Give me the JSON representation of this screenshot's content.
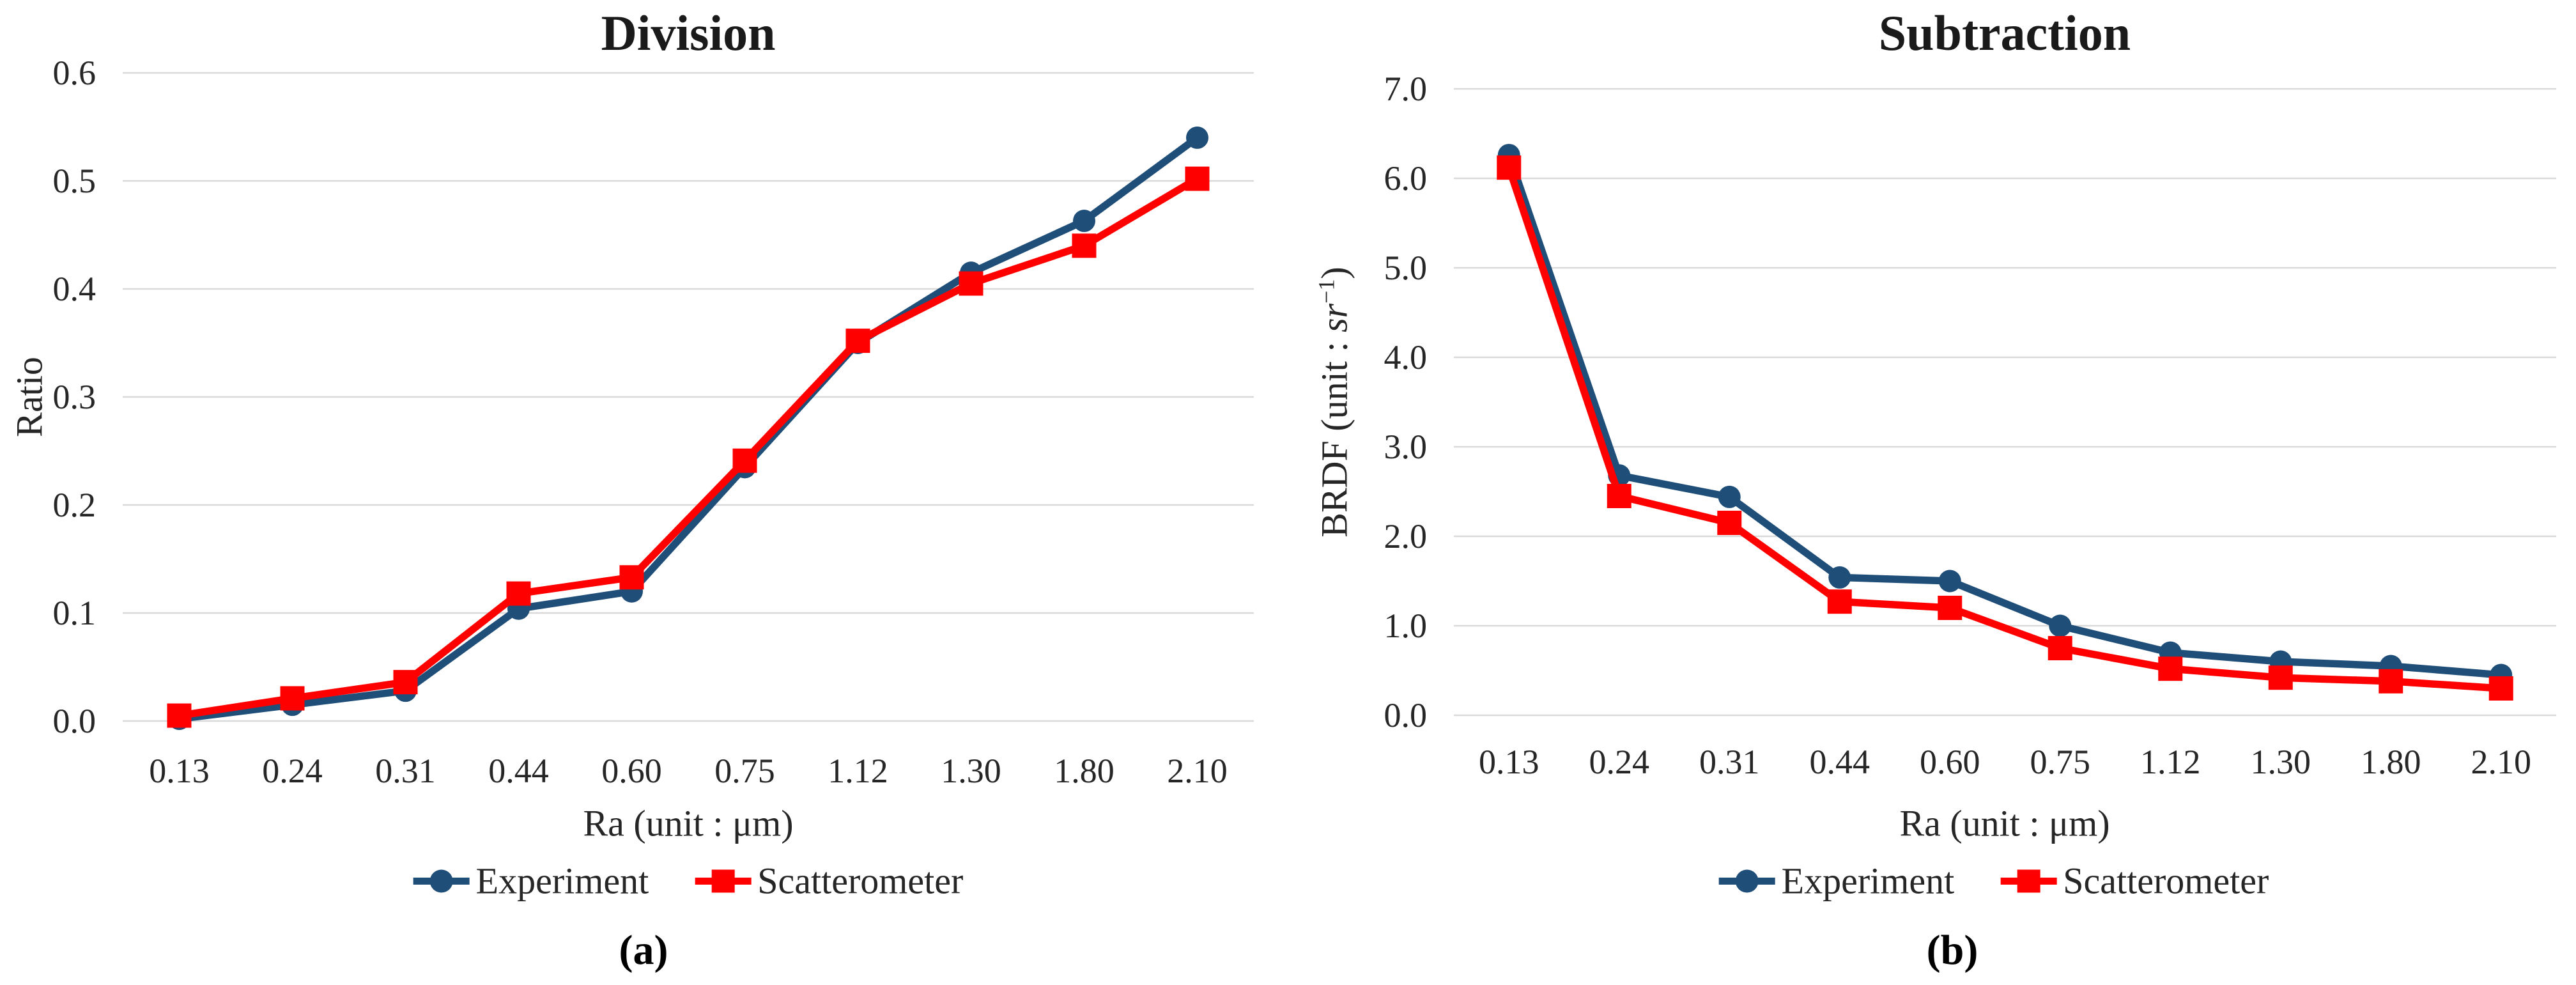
{
  "captions": [
    "(a)",
    "(b)"
  ],
  "colors": {
    "experiment": "#1F4E79",
    "scatterometer": "#FF0000",
    "gridline": "#D9D9D9",
    "text": "#262626"
  },
  "chart_data": [
    {
      "type": "line",
      "title": "Division",
      "xlabel": "Ra (unit : μm)",
      "ylabel": {
        "prefix": "Ratio",
        "italic": "",
        "sup": "",
        "suffix": ""
      },
      "categories": [
        "0.13",
        "0.24",
        "0.31",
        "0.44",
        "0.60",
        "0.75",
        "1.12",
        "1.30",
        "1.80",
        "2.10"
      ],
      "series": [
        {
          "name": "Experiment",
          "marker": "circle",
          "color": "#1F4E79",
          "values": [
            0.002,
            0.015,
            0.028,
            0.104,
            0.12,
            0.235,
            0.35,
            0.415,
            0.463,
            0.54
          ]
        },
        {
          "name": "Scatterometer",
          "marker": "square",
          "color": "#FF0000",
          "values": [
            0.005,
            0.021,
            0.036,
            0.118,
            0.133,
            0.241,
            0.352,
            0.405,
            0.44,
            0.502
          ]
        }
      ],
      "ylim": [
        0,
        0.6
      ],
      "ytick_step": 0.1,
      "yticks_labels": [
        "0.0",
        "0.1",
        "0.2",
        "0.3",
        "0.4",
        "0.5",
        "0.6"
      ],
      "grid": "horizontal",
      "legend_position": "bottom"
    },
    {
      "type": "line",
      "title": "Subtraction",
      "xlabel": "Ra (unit : μm)",
      "ylabel": {
        "prefix": "BRDF (unit : ",
        "italic": "sr",
        "sup": "−1",
        "suffix": ")"
      },
      "categories": [
        "0.13",
        "0.24",
        "0.31",
        "0.44",
        "0.60",
        "0.75",
        "1.12",
        "1.30",
        "1.80",
        "2.10"
      ],
      "series": [
        {
          "name": "Experiment",
          "marker": "circle",
          "color": "#1F4E79",
          "values": [
            6.26,
            2.68,
            2.44,
            1.54,
            1.5,
            1.0,
            0.7,
            0.6,
            0.55,
            0.45
          ]
        },
        {
          "name": "Scatterometer",
          "marker": "square",
          "color": "#FF0000",
          "values": [
            6.12,
            2.45,
            2.15,
            1.27,
            1.2,
            0.75,
            0.52,
            0.42,
            0.38,
            0.3
          ]
        }
      ],
      "ylim": [
        0,
        7
      ],
      "ytick_step": 1,
      "yticks_labels": [
        "0.0",
        "1.0",
        "2.0",
        "3.0",
        "4.0",
        "5.0",
        "6.0",
        "7.0"
      ],
      "grid": "horizontal",
      "legend_position": "bottom"
    }
  ]
}
